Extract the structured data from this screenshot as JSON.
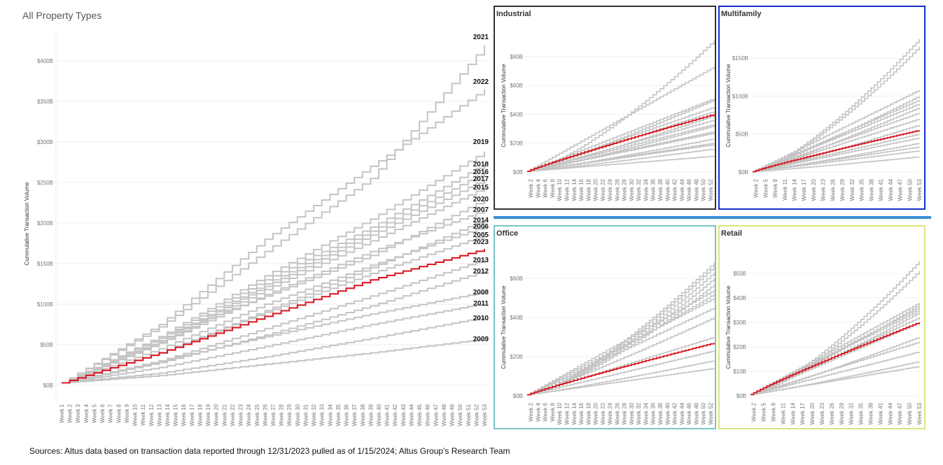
{
  "footer": {
    "source": "Sources: Altus data based on transaction data reported through 12/31/2023 pulled as of 1/15/2024; Altus Group's Research Team"
  },
  "colors": {
    "history": "#c4c4c4",
    "current_year": "#d9121b",
    "industrial_border": "#333333",
    "multifamily_border": "#1030c8",
    "office_border": "#7cc3c9",
    "retail_border": "#dfe67d",
    "separator": "#3a8fd8"
  },
  "chart_data": [
    {
      "type": "line",
      "step": true,
      "title": "All Property Types",
      "ylabel": "Cummulative Transaction Volume",
      "ylim": [
        0,
        400
      ],
      "y_ticks": [
        "$0B",
        "$50B",
        "$100B",
        "$150B",
        "$200B",
        "$250B",
        "$300B",
        "$350B",
        "$400B"
      ],
      "x_range": [
        1,
        53
      ],
      "x_tick_step": 1,
      "grid": "horizontal",
      "checkpoint_weeks": [
        1,
        13,
        26,
        39,
        53
      ],
      "series": [
        {
          "name": "2021",
          "values": [
            3,
            72,
            165,
            255,
            419
          ]
        },
        {
          "name": "2022",
          "values": [
            3,
            75,
            180,
            270,
            365
          ]
        },
        {
          "name": "2019",
          "values": [
            3,
            60,
            135,
            205,
            288
          ]
        },
        {
          "name": "2018",
          "values": [
            3,
            58,
            130,
            195,
            273
          ]
        },
        {
          "name": "2016",
          "values": [
            3,
            55,
            125,
            190,
            263
          ]
        },
        {
          "name": "2017",
          "values": [
            3,
            54,
            122,
            185,
            254
          ]
        },
        {
          "name": "2015",
          "values": [
            3,
            52,
            118,
            178,
            244
          ]
        },
        {
          "name": "2020",
          "values": [
            3,
            60,
            110,
            160,
            229
          ]
        },
        {
          "name": "2007",
          "values": [
            3,
            52,
            112,
            165,
            216
          ]
        },
        {
          "name": "2014",
          "values": [
            3,
            40,
            92,
            145,
            204
          ]
        },
        {
          "name": "2006",
          "values": [
            3,
            45,
            100,
            148,
            196
          ]
        },
        {
          "name": "2005",
          "values": [
            3,
            40,
            90,
            138,
            185
          ]
        },
        {
          "name": "2023",
          "values": [
            3,
            40,
            85,
            130,
            168
          ],
          "highlight": true
        },
        {
          "name": "2013",
          "values": [
            3,
            30,
            70,
            110,
            155
          ]
        },
        {
          "name": "2012",
          "values": [
            3,
            28,
            62,
            98,
            141
          ]
        },
        {
          "name": "2008",
          "values": [
            3,
            30,
            60,
            88,
            115
          ]
        },
        {
          "name": "2011",
          "values": [
            3,
            22,
            48,
            75,
            101
          ]
        },
        {
          "name": "2010",
          "values": [
            3,
            15,
            35,
            58,
            84
          ]
        },
        {
          "name": "2009",
          "values": [
            3,
            12,
            26,
            40,
            57
          ]
        }
      ]
    },
    {
      "type": "line",
      "step": true,
      "title": "Industrial",
      "ylabel": "Cummulative Transaction Volume",
      "ylim": [
        0,
        92
      ],
      "y_ticks": [
        "$0B",
        "$20B",
        "$40B",
        "$60B",
        "$80B"
      ],
      "y_tick_values": [
        0,
        20,
        40,
        60,
        80
      ],
      "x_range": [
        1,
        53
      ],
      "x_tick_labels": [
        "Week 2",
        "Week 4",
        "Week 6",
        "Week 8",
        "Week 10",
        "Week 12",
        "Week 14",
        "Week 16",
        "Week 18",
        "Week 20",
        "Week 22",
        "Week 24",
        "Week 26",
        "Week 28",
        "Week 30",
        "Week 32",
        "Week 34",
        "Week 36",
        "Week 38",
        "Week 40",
        "Week 42",
        "Week 44",
        "Week 46",
        "Week 48",
        "Week 50",
        "Week 52"
      ],
      "history_final_values": [
        91,
        73,
        51,
        50,
        45,
        42,
        39,
        36,
        33,
        32,
        28,
        27,
        23,
        20,
        19,
        16,
        11
      ],
      "current_year": {
        "name": "2023",
        "final_value": 40
      }
    },
    {
      "type": "line",
      "step": true,
      "title": "Multifamily",
      "ylabel": "Cummulative Transaction Volume",
      "ylim": [
        0,
        175
      ],
      "y_ticks": [
        "$0B",
        "$50B",
        "$100B",
        "$150B"
      ],
      "y_tick_values": [
        0,
        50,
        100,
        150
      ],
      "x_range": [
        1,
        53
      ],
      "x_tick_labels": [
        "Week 2",
        "Week 5",
        "Week 8",
        "Week 11",
        "Week 14",
        "Week 17",
        "Week 20",
        "Week 23",
        "Week 26",
        "Week 29",
        "Week 32",
        "Week 35",
        "Week 38",
        "Week 41",
        "Week 44",
        "Week 47",
        "Week 50",
        "Week 53"
      ],
      "history_final_values": [
        175,
        165,
        108,
        100,
        95,
        90,
        85,
        78,
        70,
        62,
        50,
        45,
        38,
        33,
        28,
        20
      ],
      "current_year": {
        "name": "2023",
        "final_value": 55
      }
    },
    {
      "type": "line",
      "step": true,
      "title": "Office",
      "ylabel": "Cummulative Transaction Volume",
      "ylim": [
        0,
        70
      ],
      "y_ticks": [
        "$0B",
        "$20B",
        "$40B",
        "$60B"
      ],
      "y_tick_values": [
        0,
        20,
        40,
        60
      ],
      "x_range": [
        1,
        53
      ],
      "x_tick_labels": [
        "Week 2",
        "Week 4",
        "Week 6",
        "Week 8",
        "Week 10",
        "Week 12",
        "Week 14",
        "Week 16",
        "Week 18",
        "Week 20",
        "Week 22",
        "Week 24",
        "Week 26",
        "Week 28",
        "Week 30",
        "Week 32",
        "Week 34",
        "Week 36",
        "Week 38",
        "Week 40",
        "Week 42",
        "Week 44",
        "Week 46",
        "Week 48",
        "Week 50",
        "Week 52"
      ],
      "history_final_values": [
        68,
        66,
        63,
        60,
        57,
        54,
        52,
        50,
        45,
        40,
        30,
        23,
        18,
        14
      ],
      "current_year": {
        "name": "2023",
        "final_value": 27
      }
    },
    {
      "type": "line",
      "step": true,
      "title": "Retail",
      "ylabel": "Cummulative Transaction Volume",
      "ylim": [
        0,
        56
      ],
      "y_ticks": [
        "$0B",
        "$10B",
        "$20B",
        "$30B",
        "$40B",
        "$50B"
      ],
      "y_tick_values": [
        0,
        10,
        20,
        30,
        40,
        50
      ],
      "x_range": [
        1,
        53
      ],
      "x_tick_labels": [
        "Week 2",
        "Week 5",
        "Week 8",
        "Week 11",
        "Week 14",
        "Week 17",
        "Week 20",
        "Week 23",
        "Week 26",
        "Week 29",
        "Week 32",
        "Week 35",
        "Week 38",
        "Week 41",
        "Week 44",
        "Week 47",
        "Week 50",
        "Week 53"
      ],
      "history_final_values": [
        55,
        51,
        38,
        37,
        36,
        35,
        34,
        32,
        30,
        24,
        22,
        18,
        14,
        12
      ],
      "current_year": {
        "name": "2023",
        "final_value": 30
      }
    }
  ]
}
